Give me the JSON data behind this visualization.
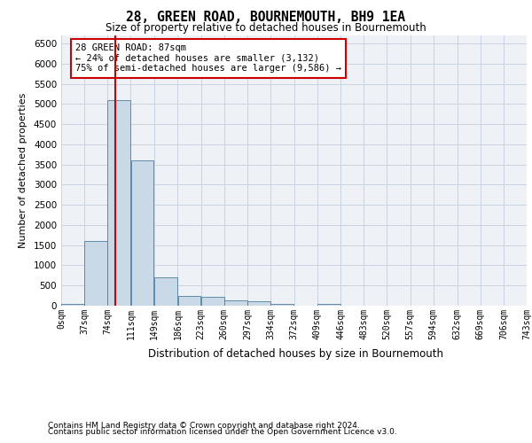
{
  "title": "28, GREEN ROAD, BOURNEMOUTH, BH9 1EA",
  "subtitle": "Size of property relative to detached houses in Bournemouth",
  "xlabel": "Distribution of detached houses by size in Bournemouth",
  "ylabel": "Number of detached properties",
  "footnote1": "Contains HM Land Registry data © Crown copyright and database right 2024.",
  "footnote2": "Contains public sector information licensed under the Open Government Licence v3.0.",
  "annotation_title": "28 GREEN ROAD: 87sqm",
  "annotation_line1": "← 24% of detached houses are smaller (3,132)",
  "annotation_line2": "75% of semi-detached houses are larger (9,586) →",
  "property_size": 87,
  "bar_color": "#c9d9e8",
  "bar_edge_color": "#4a7fa0",
  "vline_color": "#cc0000",
  "annotation_box_edgecolor": "#cc0000",
  "plot_bg_color": "#eef2f7",
  "grid_color": "#c8d4e0",
  "bins": [
    0,
    37,
    74,
    111,
    149,
    186,
    223,
    260,
    297,
    334,
    372,
    409,
    446,
    483,
    520,
    557,
    594,
    632,
    669,
    706,
    743
  ],
  "bin_labels": [
    "0sqm",
    "37sqm",
    "74sqm",
    "111sqm",
    "149sqm",
    "186sqm",
    "223sqm",
    "260sqm",
    "297sqm",
    "334sqm",
    "372sqm",
    "409sqm",
    "446sqm",
    "483sqm",
    "520sqm",
    "557sqm",
    "594sqm",
    "632sqm",
    "669sqm",
    "706sqm",
    "743sqm"
  ],
  "bar_heights": [
    50,
    1600,
    5100,
    3600,
    700,
    250,
    230,
    130,
    100,
    50,
    0,
    50,
    0,
    0,
    0,
    0,
    0,
    0,
    0,
    0
  ],
  "ylim": [
    0,
    6700
  ],
  "yticks": [
    0,
    500,
    1000,
    1500,
    2000,
    2500,
    3000,
    3500,
    4000,
    4500,
    5000,
    5500,
    6000,
    6500
  ]
}
